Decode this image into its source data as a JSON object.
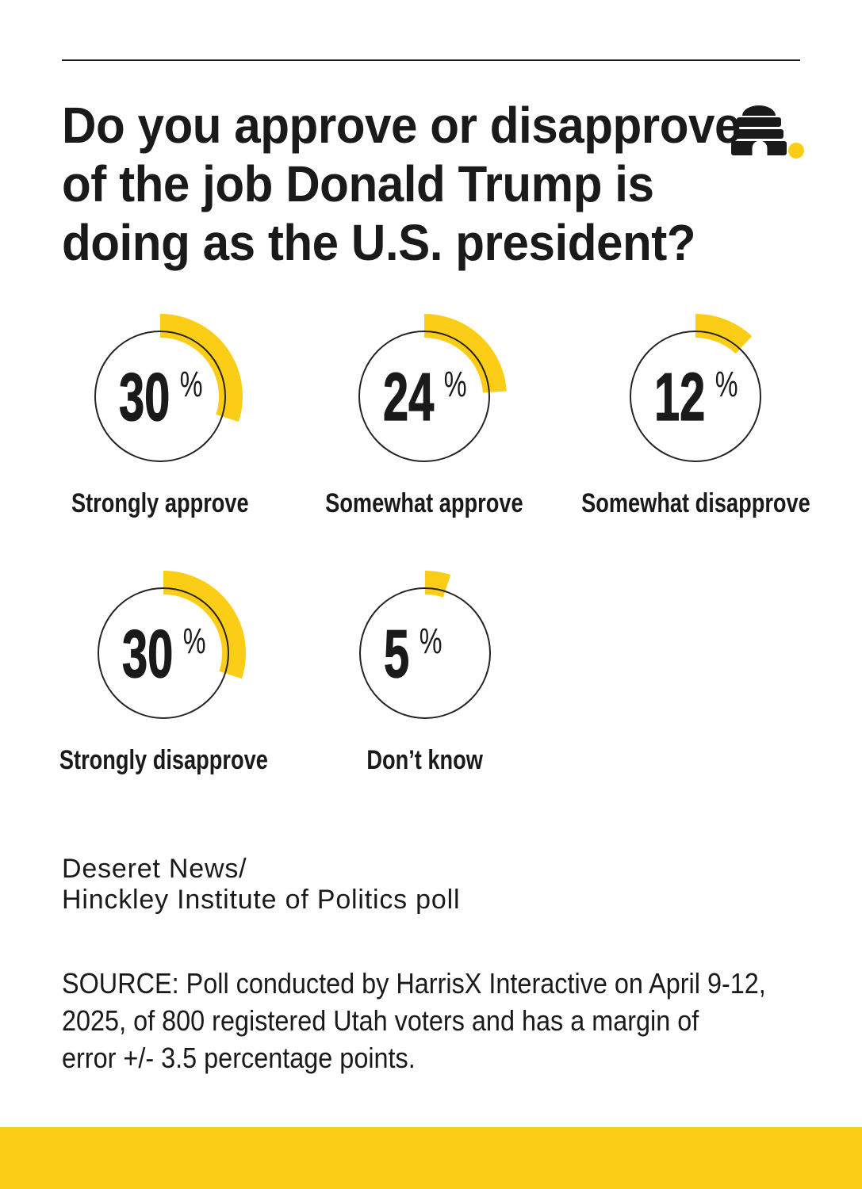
{
  "page": {
    "title_lines": [
      "Do you approve or disapprove",
      "of the job Donald Trump is",
      "doing as the U.S. president?"
    ],
    "attribution_lines": [
      "Deseret News/",
      "Hinckley Institute of Politics poll"
    ],
    "source_lines": [
      "SOURCE: Poll conducted by HarrisX Interactive on April 9-12,",
      "2025, of 800 registered Utah voters and has a margin of",
      "error +/- 3.5 percentage points."
    ]
  },
  "logo": {
    "name": "Deseret News beehive logo"
  },
  "colors": {
    "accent_yellow": "#FCCD17",
    "text": "#1a1a1a",
    "background": "#ffffff"
  },
  "chart_data": {
    "type": "pie",
    "subtype": "donut-gauge-set",
    "title": "Do you approve or disapprove of the job Donald Trump is doing as the U.S. president?",
    "categories": [
      "Strongly approve",
      "Somewhat approve",
      "Somewhat disapprove",
      "Strongly disapprove",
      "Don’t know"
    ],
    "values": [
      30,
      24,
      12,
      30,
      5
    ],
    "unit": "%",
    "max": 100,
    "arc_start": "12 o'clock",
    "direction": "clockwise",
    "arc_color": "#FCCD17",
    "legend_position": "none",
    "grid": false
  }
}
